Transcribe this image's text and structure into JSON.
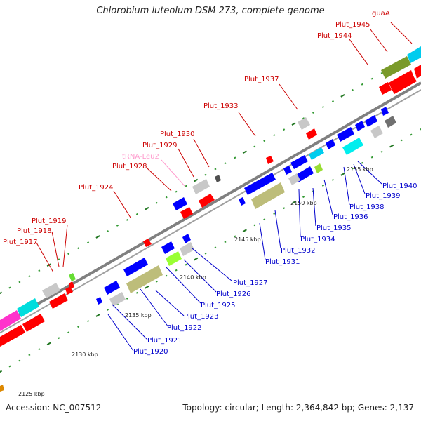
{
  "title": "Chlorobium luteolum DSM 273, complete genome",
  "footer": {
    "accession": "Accession: NC_007512",
    "summary": "Topology: circular; Length: 2,364,842 bp; Genes: 2,137"
  },
  "colors": {
    "forward_label": "#cc0000",
    "reverse_label": "#0000cc",
    "trna_label": "#ff99cc",
    "cds": "#ff0000",
    "cds_reverse": "#0000ff",
    "cog_gray": "#c8c8c8",
    "cog_olive": "#bdbd7a",
    "cog_cyan": "#00e5ee",
    "cog_green": "#99ff33",
    "cog_magenta": "#ff33cc"
  },
  "scale_labels": [
    {
      "id": "2125",
      "text": "2125 kbp"
    },
    {
      "id": "2130",
      "text": "2130 kbp"
    },
    {
      "id": "2135",
      "text": "2135 kbp"
    },
    {
      "id": "2140",
      "text": "2140 kbp"
    },
    {
      "id": "2145",
      "text": "2145 kbp"
    },
    {
      "id": "2150",
      "text": "2150 kbp"
    },
    {
      "id": "2155",
      "text": "2155 kbp"
    }
  ],
  "top_labels": [
    {
      "id": "guaA",
      "text": "guaA"
    },
    {
      "id": "p1945",
      "text": "Plut_1945"
    },
    {
      "id": "p1944",
      "text": "Plut_1944"
    },
    {
      "id": "p1937",
      "text": "Plut_1937"
    },
    {
      "id": "p1933",
      "text": "Plut_1933"
    },
    {
      "id": "p1930",
      "text": "Plut_1930"
    },
    {
      "id": "p1929",
      "text": "Plut_1929"
    },
    {
      "id": "trna",
      "text": "tRNA-Leu2"
    },
    {
      "id": "p1928",
      "text": "Plut_1928"
    },
    {
      "id": "p1924",
      "text": "Plut_1924"
    },
    {
      "id": "p1919",
      "text": "Plut_1919"
    },
    {
      "id": "p1918",
      "text": "Plut_1918"
    },
    {
      "id": "p1917",
      "text": "Plut_1917"
    }
  ],
  "bottom_labels": [
    {
      "id": "p1940",
      "text": "Plut_1940"
    },
    {
      "id": "p1939",
      "text": "Plut_1939"
    },
    {
      "id": "p1938",
      "text": "Plut_1938"
    },
    {
      "id": "p1936",
      "text": "Plut_1936"
    },
    {
      "id": "p1935",
      "text": "Plut_1935"
    },
    {
      "id": "p1934",
      "text": "Plut_1934"
    },
    {
      "id": "p1932",
      "text": "Plut_1932"
    },
    {
      "id": "p1931",
      "text": "Plut_1931"
    },
    {
      "id": "p1927",
      "text": "Plut_1927"
    },
    {
      "id": "p1926",
      "text": "Plut_1926"
    },
    {
      "id": "p1925",
      "text": "Plut_1925"
    },
    {
      "id": "p1923",
      "text": "Plut_1923"
    },
    {
      "id": "p1922",
      "text": "Plut_1922"
    },
    {
      "id": "p1921",
      "text": "Plut_1921"
    },
    {
      "id": "p1920",
      "text": "Plut_1920"
    }
  ]
}
